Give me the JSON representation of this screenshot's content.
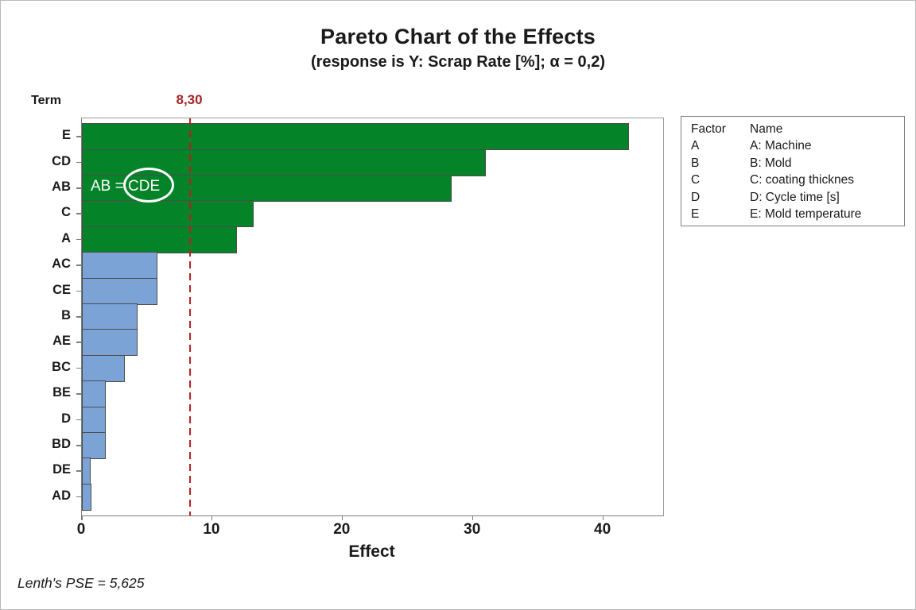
{
  "chart_data": {
    "type": "bar",
    "orientation": "horizontal",
    "title": "Pareto Chart of the Effects",
    "subtitle": "(response is Y: Scrap Rate [%]; α = 0,2)",
    "xlabel": "Effect",
    "ylabel": "Term",
    "xlim": [
      0,
      44.6
    ],
    "xticks": [
      0,
      10,
      20,
      30,
      40
    ],
    "categories": [
      "E",
      "CD",
      "AB",
      "C",
      "A",
      "AC",
      "CE",
      "B",
      "AE",
      "BC",
      "BE",
      "D",
      "BD",
      "DE",
      "AD"
    ],
    "values": [
      42.0,
      31.0,
      28.4,
      13.2,
      11.9,
      5.8,
      5.8,
      4.3,
      4.3,
      3.3,
      1.8,
      1.8,
      1.85,
      0.7,
      0.75
    ],
    "significant": [
      true,
      true,
      true,
      true,
      true,
      false,
      false,
      false,
      false,
      false,
      false,
      false,
      false,
      false,
      false
    ],
    "reference_line": {
      "value": 8.3,
      "label": "8,30"
    },
    "annotation": {
      "text": "AB = CDE",
      "circled": "CDE"
    },
    "footnote": "Lenth's PSE = 5,625",
    "legend": {
      "headers": [
        "Factor",
        "Name"
      ],
      "rows": [
        {
          "factor": "A",
          "name": "A: Machine"
        },
        {
          "factor": "B",
          "name": "B: Mold"
        },
        {
          "factor": "C",
          "name": "C: coating thicknes"
        },
        {
          "factor": "D",
          "name": "D: Cycle time [s]"
        },
        {
          "factor": "E",
          "name": "E: Mold temperature"
        }
      ]
    },
    "colors": {
      "significant_bar": "#048328",
      "nonsignificant_bar": "#7ba3d6",
      "bar_border": "#4c4c4c",
      "reference_line": "#b82020",
      "reference_label": "#a32424",
      "annotation_text": "#ffffff"
    },
    "layout_hints": {
      "grid": false,
      "legend_position": "right"
    }
  }
}
